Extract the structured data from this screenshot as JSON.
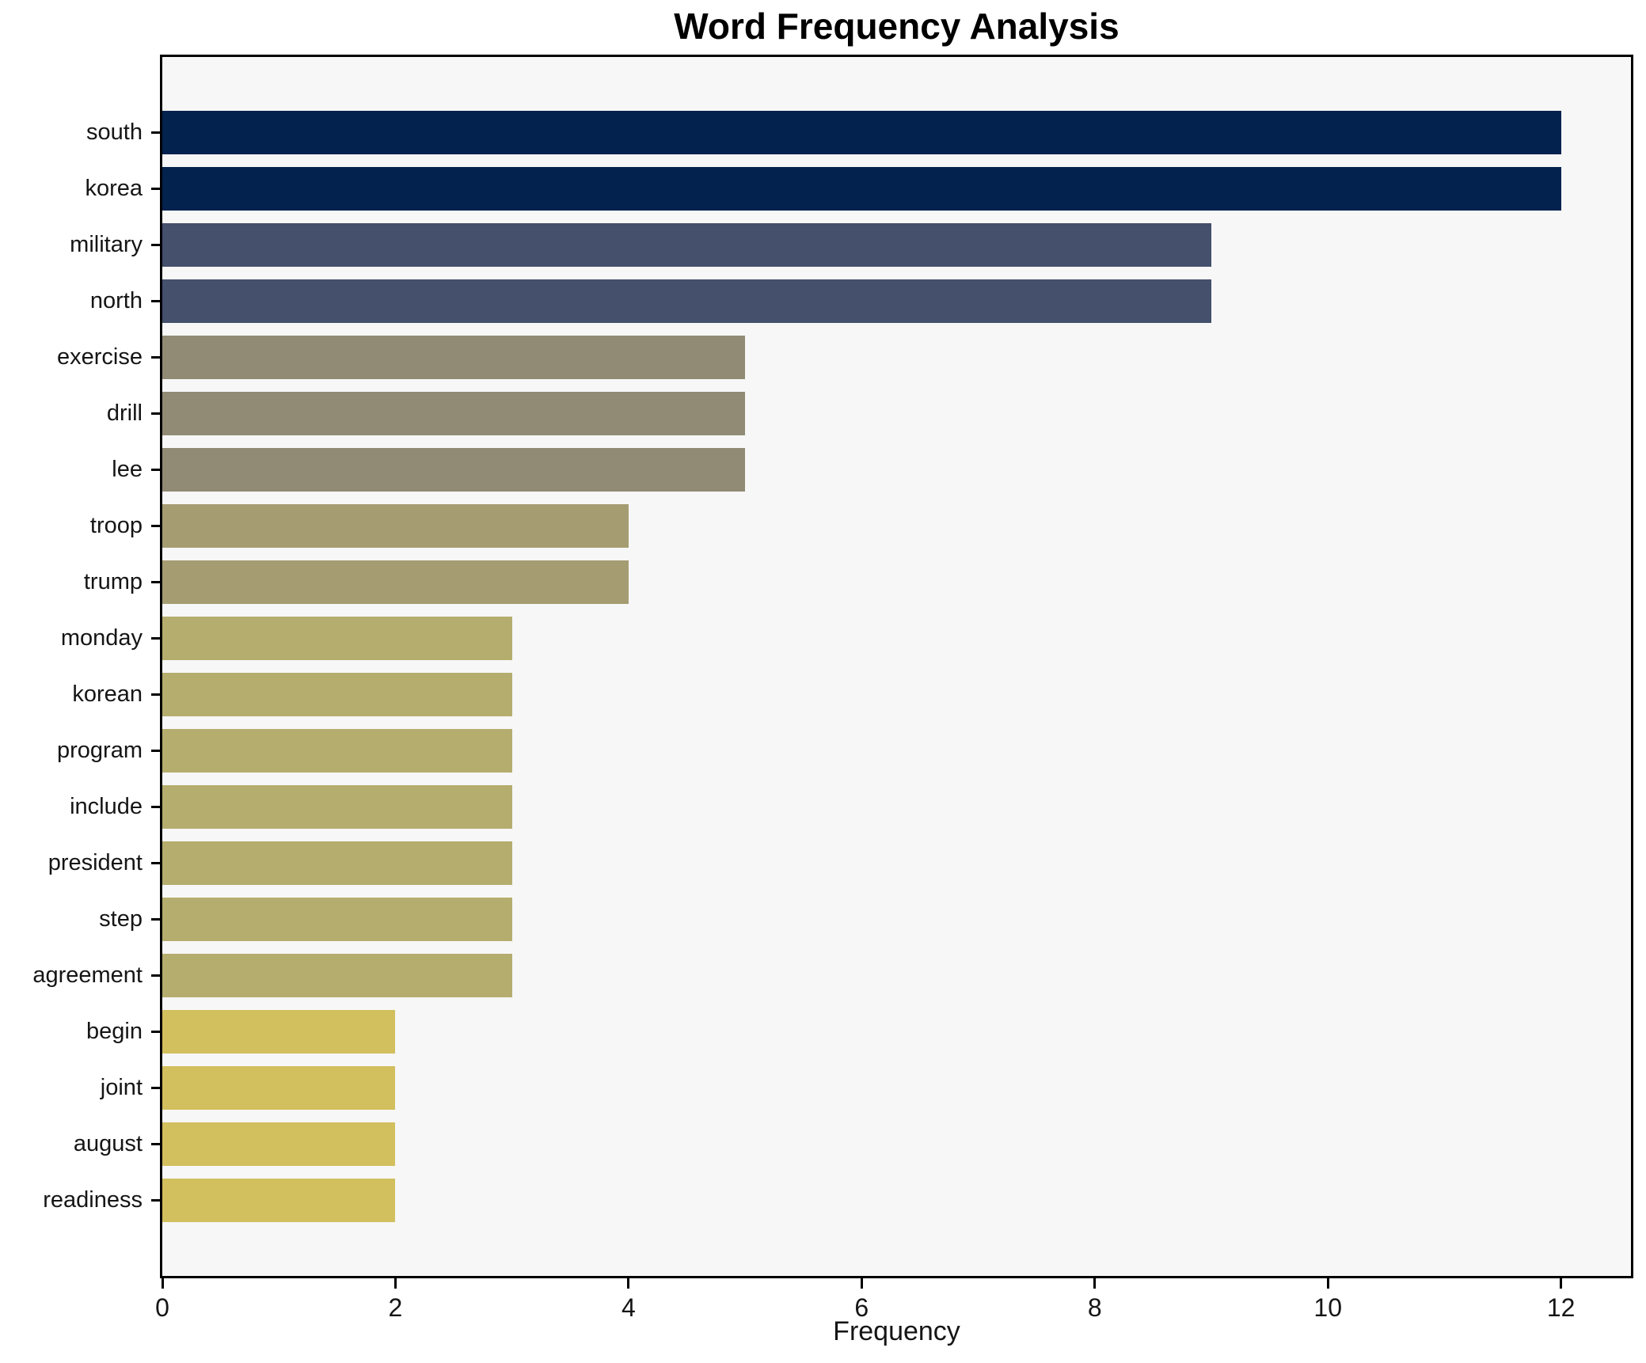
{
  "figure": {
    "title": "Word Frequency Analysis",
    "xlabel": "Frequency"
  },
  "chart_data": {
    "type": "bar",
    "orientation": "horizontal",
    "title": "Word Frequency Analysis",
    "xlabel": "Frequency",
    "ylabel": "",
    "categories": [
      "south",
      "korea",
      "military",
      "north",
      "exercise",
      "drill",
      "lee",
      "troop",
      "trump",
      "monday",
      "korean",
      "program",
      "include",
      "president",
      "step",
      "agreement",
      "begin",
      "joint",
      "august",
      "readiness"
    ],
    "values": [
      12,
      12,
      9,
      9,
      5,
      5,
      5,
      4,
      4,
      3,
      3,
      3,
      3,
      3,
      3,
      3,
      2,
      2,
      2,
      2
    ],
    "bar_colors": [
      "#03224e",
      "#03224e",
      "#44506c",
      "#44506c",
      "#918a74",
      "#918a74",
      "#918a74",
      "#a59c72",
      "#a59c72",
      "#b5ad6e",
      "#b5ad6e",
      "#b5ad6e",
      "#b5ad6e",
      "#b5ad6e",
      "#b5ad6e",
      "#b5ad6e",
      "#d2bf5e",
      "#d2bf5e",
      "#d2bf5e",
      "#d2bf5e"
    ],
    "x_ticks": [
      0,
      2,
      4,
      6,
      8,
      10,
      12
    ],
    "xlim": [
      0,
      12.6
    ],
    "grid": false,
    "legend_position": "none",
    "plot_background": "#f7f7f7",
    "figure_background": "#ffffff",
    "spine_color": "#000000",
    "text_color": "#151515"
  }
}
